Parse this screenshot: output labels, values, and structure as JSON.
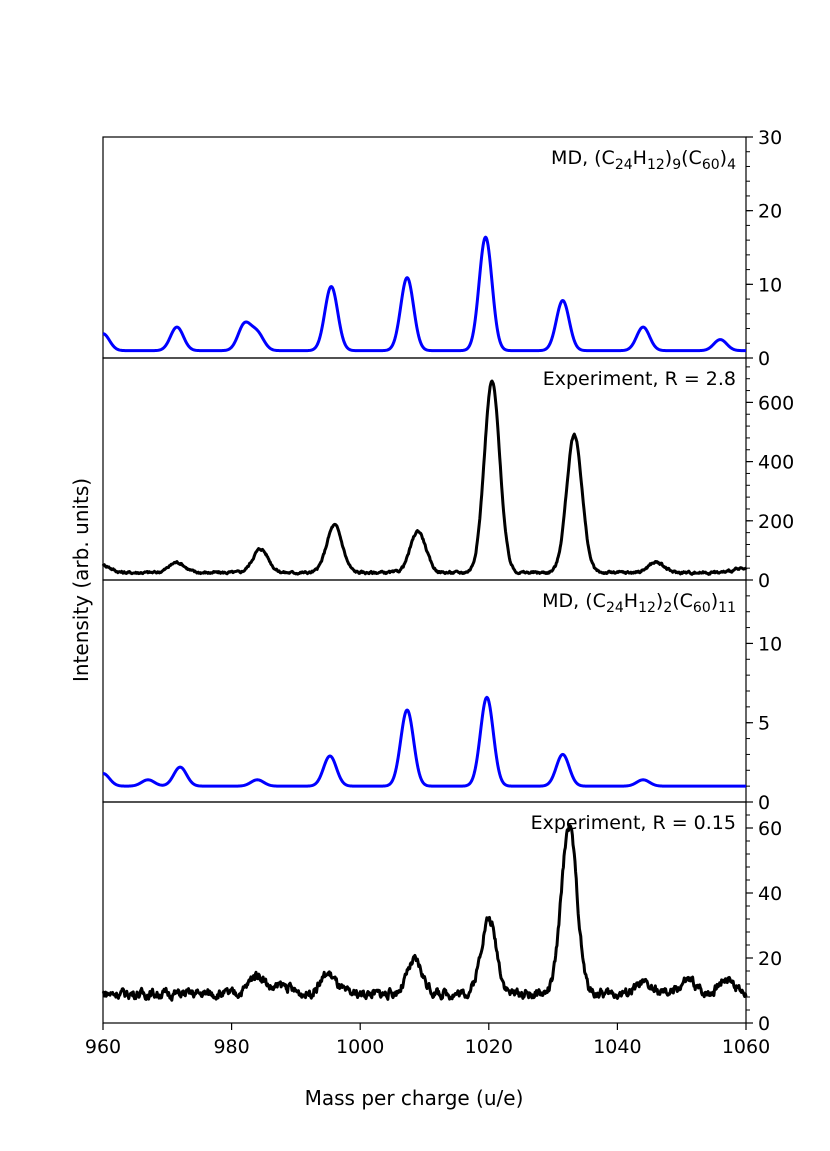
{
  "figure": {
    "xlabel": "Mass per charge (u/e)",
    "ylabel": "Intensity (arb. units)"
  },
  "chart_data": {
    "type": "line",
    "x_range": [
      960,
      1060
    ],
    "x_ticks": [
      960,
      980,
      1000,
      1020,
      1040,
      1060
    ],
    "xlabel": "Mass per charge (u/e)",
    "ylabel": "Intensity (arb. units)",
    "panels": [
      {
        "name": "md-c24h12-9-c60-4",
        "label": "MD, (C24H12)9(C60)4",
        "label_parts": [
          {
            "t": "MD, (C"
          },
          {
            "t": "24",
            "sub": true
          },
          {
            "t": "H"
          },
          {
            "t": "12",
            "sub": true
          },
          {
            "t": ")"
          },
          {
            "t": "9",
            "sub": true
          },
          {
            "t": "(C"
          },
          {
            "t": "60",
            "sub": true
          },
          {
            "t": ")"
          },
          {
            "t": "4",
            "sub": true
          }
        ],
        "color": "#0000ff",
        "ylim": [
          0,
          30
        ],
        "yticks": [
          0,
          10,
          20,
          30
        ],
        "baseline": 1,
        "width": 1.0,
        "peaks": [
          [
            960,
            2.3
          ],
          [
            971.5,
            3.2
          ],
          [
            982,
            3.5
          ],
          [
            984,
            2.3
          ],
          [
            995.5,
            8.7
          ],
          [
            1007.3,
            9.9
          ],
          [
            1019.5,
            15.4
          ],
          [
            1031.5,
            6.8
          ],
          [
            1044,
            3.2
          ],
          [
            1056,
            1.5
          ]
        ],
        "noise": 0
      },
      {
        "name": "experiment-r-2-8",
        "label": "Experiment, R = 2.8",
        "label_parts": [
          {
            "t": "Experiment, R = 2.8"
          }
        ],
        "color": "#000000",
        "ylim": [
          0,
          750
        ],
        "yticks": [
          0,
          200,
          400,
          600
        ],
        "baseline": 25,
        "width": 1.2,
        "peaks": [
          [
            960,
            25
          ],
          [
            971.5,
            35
          ],
          [
            984.5,
            80
          ],
          [
            996,
            160
          ],
          [
            1009,
            140
          ],
          [
            1020.5,
            645
          ],
          [
            1033.3,
            465
          ],
          [
            1046,
            35
          ],
          [
            1059,
            12
          ]
        ],
        "noise": 5
      },
      {
        "name": "md-c24h12-2-c60-11",
        "label": "MD, (C24H12)2(C60)11",
        "label_parts": [
          {
            "t": "MD, (C"
          },
          {
            "t": "24",
            "sub": true
          },
          {
            "t": "H"
          },
          {
            "t": "12",
            "sub": true
          },
          {
            "t": ")"
          },
          {
            "t": "2",
            "sub": true
          },
          {
            "t": "(C"
          },
          {
            "t": "60",
            "sub": true
          },
          {
            "t": ")"
          },
          {
            "t": "11",
            "sub": true
          }
        ],
        "color": "#0000ff",
        "ylim": [
          0,
          14
        ],
        "yticks": [
          0,
          5,
          10
        ],
        "baseline": 1,
        "width": 1.0,
        "peaks": [
          [
            960,
            0.8
          ],
          [
            967,
            0.4
          ],
          [
            972,
            1.2
          ],
          [
            984,
            0.4
          ],
          [
            995.3,
            1.9
          ],
          [
            1007.3,
            4.8
          ],
          [
            1019.7,
            5.6
          ],
          [
            1031.5,
            2.0
          ],
          [
            1044,
            0.4
          ]
        ],
        "noise": 0
      },
      {
        "name": "experiment-r-0-15",
        "label": "Experiment, R = 0.15",
        "label_parts": [
          {
            "t": "Experiment, R = 0.15"
          }
        ],
        "color": "#000000",
        "ylim": [
          0,
          68
        ],
        "yticks": [
          0,
          20,
          40,
          60
        ],
        "baseline": 9,
        "width": 1.2,
        "peaks": [
          [
            984,
            6
          ],
          [
            988,
            2.5
          ],
          [
            995,
            6
          ],
          [
            1008.5,
            10
          ],
          [
            1020,
            23
          ],
          [
            1032.5,
            52
          ],
          [
            1044,
            3
          ],
          [
            1051,
            4
          ],
          [
            1057,
            5
          ]
        ],
        "noise": 1.6
      }
    ]
  }
}
